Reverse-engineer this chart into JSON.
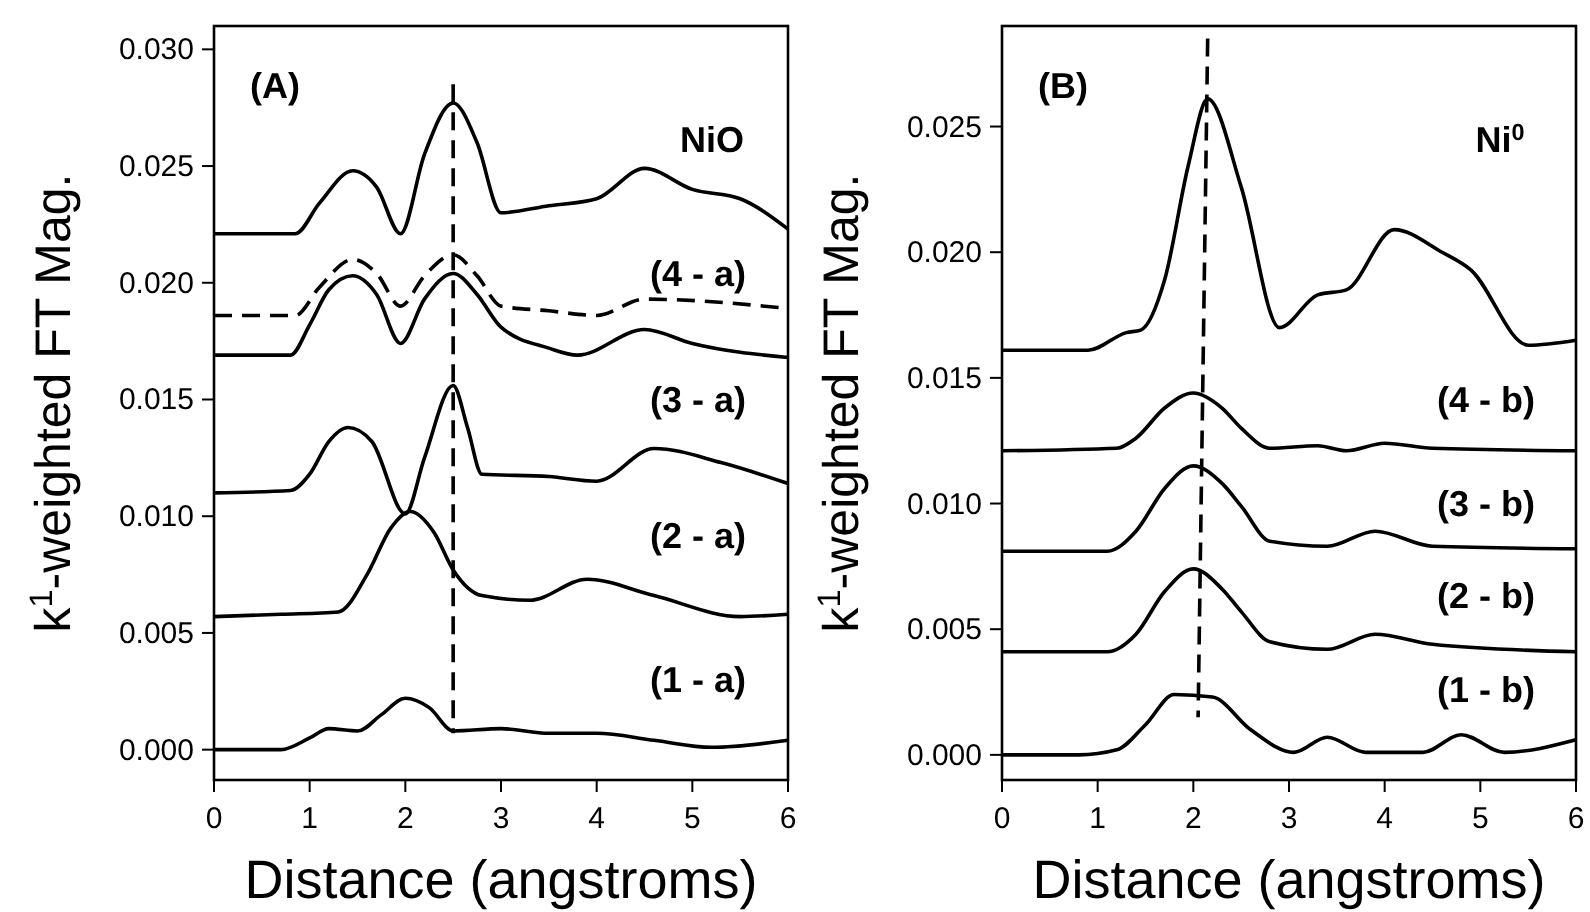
{
  "chart_data": [
    {
      "type": "line",
      "xlabel": "Distance (angstroms)",
      "ylabel": "k$^{1}$-weighted FT Mag.",
      "xlim": [
        0,
        6
      ],
      "ylim": [
        -0.0013,
        0.031
      ],
      "xticks": [
        0,
        1,
        2,
        3,
        4,
        5,
        6
      ],
      "yticks": [
        {
          "value": 0,
          "label": "0.000"
        },
        {
          "value": 0.005,
          "label": "0.005"
        },
        {
          "value": 0.01,
          "label": "0.010"
        },
        {
          "value": 0.015,
          "label": "0.015"
        },
        {
          "value": 0.02,
          "label": "0.020"
        },
        {
          "value": 0.025,
          "label": "0.025"
        },
        {
          "value": 0.03,
          "label": "0.030"
        }
      ],
      "grid": false,
      "marker": "none",
      "line_style": "solid",
      "annotations": [
        "(A)",
        "NiO",
        "(4 - a)",
        "(3 - a)",
        "(2 - a)",
        "(1 - a)"
      ],
      "series": [
        {
          "color": "#000000",
          "x": [
            0,
            0.7,
            1.0,
            1.2,
            1.5,
            1.75,
            2.0,
            2.25,
            2.5,
            3.0,
            3.5,
            4.0,
            4.6,
            5.2,
            6.0
          ],
          "values": [
            0,
            0,
            0.0005,
            0.0009,
            0.0008,
            0.0015,
            0.0022,
            0.0018,
            0.0008,
            0.0009,
            0.0007,
            0.0007,
            0.0004,
            0.0001,
            0.0004
          ]
        },
        {
          "color": "#000000",
          "x": [
            0,
            0.7,
            1.3,
            1.6,
            1.85,
            2.05,
            2.3,
            2.5,
            2.8,
            3.3,
            3.9,
            4.6,
            5.5,
            6.0
          ],
          "values": [
            0.0057,
            0.0058,
            0.0059,
            0.0075,
            0.0095,
            0.0102,
            0.0093,
            0.0077,
            0.0066,
            0.0064,
            0.0073,
            0.0066,
            0.0057,
            0.0058
          ]
        },
        {
          "color": "#000000",
          "x": [
            0,
            0.8,
            1.0,
            1.2,
            1.4,
            1.65,
            2.0,
            2.2,
            2.5,
            2.65,
            2.8,
            3.5,
            4.0,
            4.6,
            5.3,
            6.0
          ],
          "values": [
            0.011,
            0.0111,
            0.0118,
            0.0132,
            0.0138,
            0.0132,
            0.0101,
            0.0125,
            0.0156,
            0.0138,
            0.0118,
            0.0117,
            0.0115,
            0.0129,
            0.0123,
            0.0114
          ]
        },
        {
          "color": "#000000",
          "x": [
            0,
            0.8,
            1.0,
            1.2,
            1.45,
            1.7,
            1.95,
            2.2,
            2.5,
            2.75,
            3.0,
            3.5,
            3.8,
            4.5,
            5.0,
            6.0
          ],
          "values": [
            0.0169,
            0.0169,
            0.0182,
            0.0197,
            0.0203,
            0.0195,
            0.0174,
            0.0193,
            0.0204,
            0.0195,
            0.0181,
            0.0172,
            0.0169,
            0.018,
            0.0174,
            0.0168
          ]
        },
        {
          "color": "#000000",
          "line_style": "dashed",
          "x": [
            0,
            0.85,
            1.1,
            1.45,
            1.7,
            1.95,
            2.2,
            2.5,
            2.75,
            3.0,
            3.5,
            4.0,
            4.5,
            6.0
          ],
          "values": [
            0.0186,
            0.0186,
            0.0198,
            0.021,
            0.0204,
            0.019,
            0.0203,
            0.0212,
            0.0203,
            0.019,
            0.0188,
            0.0186,
            0.0193,
            0.0189
          ]
        },
        {
          "color": "#000000",
          "x": [
            0,
            0.85,
            1.1,
            1.45,
            1.7,
            1.95,
            2.2,
            2.5,
            2.75,
            3.0,
            3.5,
            4.0,
            4.5,
            5.0,
            5.5,
            6.0
          ],
          "values": [
            0.0221,
            0.0221,
            0.0234,
            0.0248,
            0.0241,
            0.0221,
            0.0255,
            0.0277,
            0.026,
            0.023,
            0.0233,
            0.0236,
            0.0249,
            0.024,
            0.0236,
            0.0223
          ]
        },
        {
          "color": "#000000",
          "line_style": "dashed",
          "x": [
            2.5,
            2.5
          ],
          "values": [
            0.0285,
            0.0007
          ]
        }
      ]
    },
    {
      "type": "line",
      "xlabel": "Distance (angstroms)",
      "ylabel": "k$^{1}$-weighted FT Mag.",
      "xlim": [
        0,
        6
      ],
      "ylim": [
        -0.001,
        0.029
      ],
      "xticks": [
        0,
        1,
        2,
        3,
        4,
        5,
        6
      ],
      "yticks": [
        {
          "value": 0,
          "label": "0.000"
        },
        {
          "value": 0.005,
          "label": "0.005"
        },
        {
          "value": 0.01,
          "label": "0.010"
        },
        {
          "value": 0.015,
          "label": "0.015"
        },
        {
          "value": 0.02,
          "label": "0.020"
        },
        {
          "value": 0.025,
          "label": "0.025"
        }
      ],
      "grid": false,
      "marker": "none",
      "line_style": "solid",
      "annotations": [
        "(B)",
        "Ni$^{0}$",
        "(4 - b)",
        "(3 - b)",
        "(2 - b)",
        "(1 - b)"
      ],
      "series": [
        {
          "color": "#000000",
          "x": [
            0,
            0.8,
            1.2,
            1.5,
            1.8,
            2.2,
            2.6,
            3.05,
            3.4,
            3.8,
            4.4,
            4.8,
            5.25,
            6.0
          ],
          "values": [
            0,
            0,
            0.0002,
            0.0012,
            0.0024,
            0.0023,
            0.001,
            0.0001,
            0.0007,
            0.0001,
            0.0001,
            0.0008,
            0.0001,
            0.0006
          ]
        },
        {
          "color": "#000000",
          "x": [
            0,
            1.1,
            1.4,
            1.7,
            2.0,
            2.3,
            2.5,
            2.8,
            3.4,
            3.9,
            4.5,
            6.0
          ],
          "values": [
            0.0041,
            0.0041,
            0.0048,
            0.0065,
            0.0074,
            0.0066,
            0.0057,
            0.0045,
            0.0042,
            0.0048,
            0.0044,
            0.0041
          ]
        },
        {
          "color": "#000000",
          "x": [
            0,
            1.1,
            1.4,
            1.7,
            2.0,
            2.3,
            2.5,
            2.8,
            3.4,
            3.9,
            4.5,
            6.0
          ],
          "values": [
            0.0081,
            0.0081,
            0.0089,
            0.0106,
            0.0115,
            0.0108,
            0.0099,
            0.0085,
            0.0083,
            0.0089,
            0.0083,
            0.0082
          ]
        },
        {
          "color": "#000000",
          "x": [
            0,
            1.2,
            1.4,
            1.7,
            2.0,
            2.3,
            2.5,
            2.8,
            3.3,
            3.6,
            4.0,
            4.5,
            6.0
          ],
          "values": [
            0.0121,
            0.0122,
            0.0126,
            0.0138,
            0.0144,
            0.0138,
            0.013,
            0.0122,
            0.0123,
            0.0121,
            0.0124,
            0.0122,
            0.0121
          ]
        },
        {
          "color": "#000000",
          "x": [
            0,
            0.9,
            1.3,
            1.45,
            1.7,
            1.95,
            2.15,
            2.5,
            2.9,
            3.3,
            3.6,
            4.1,
            4.6,
            4.9,
            5.5,
            6.0
          ],
          "values": [
            0.0161,
            0.0161,
            0.0168,
            0.0169,
            0.0189,
            0.0235,
            0.0261,
            0.0226,
            0.017,
            0.0183,
            0.0185,
            0.0209,
            0.02,
            0.0193,
            0.0163,
            0.0165
          ]
        },
        {
          "color": "#000000",
          "line_style": "dashed",
          "x": [
            2.15,
            2.05
          ],
          "values": [
            0.0285,
            0.0015
          ]
        }
      ]
    }
  ]
}
